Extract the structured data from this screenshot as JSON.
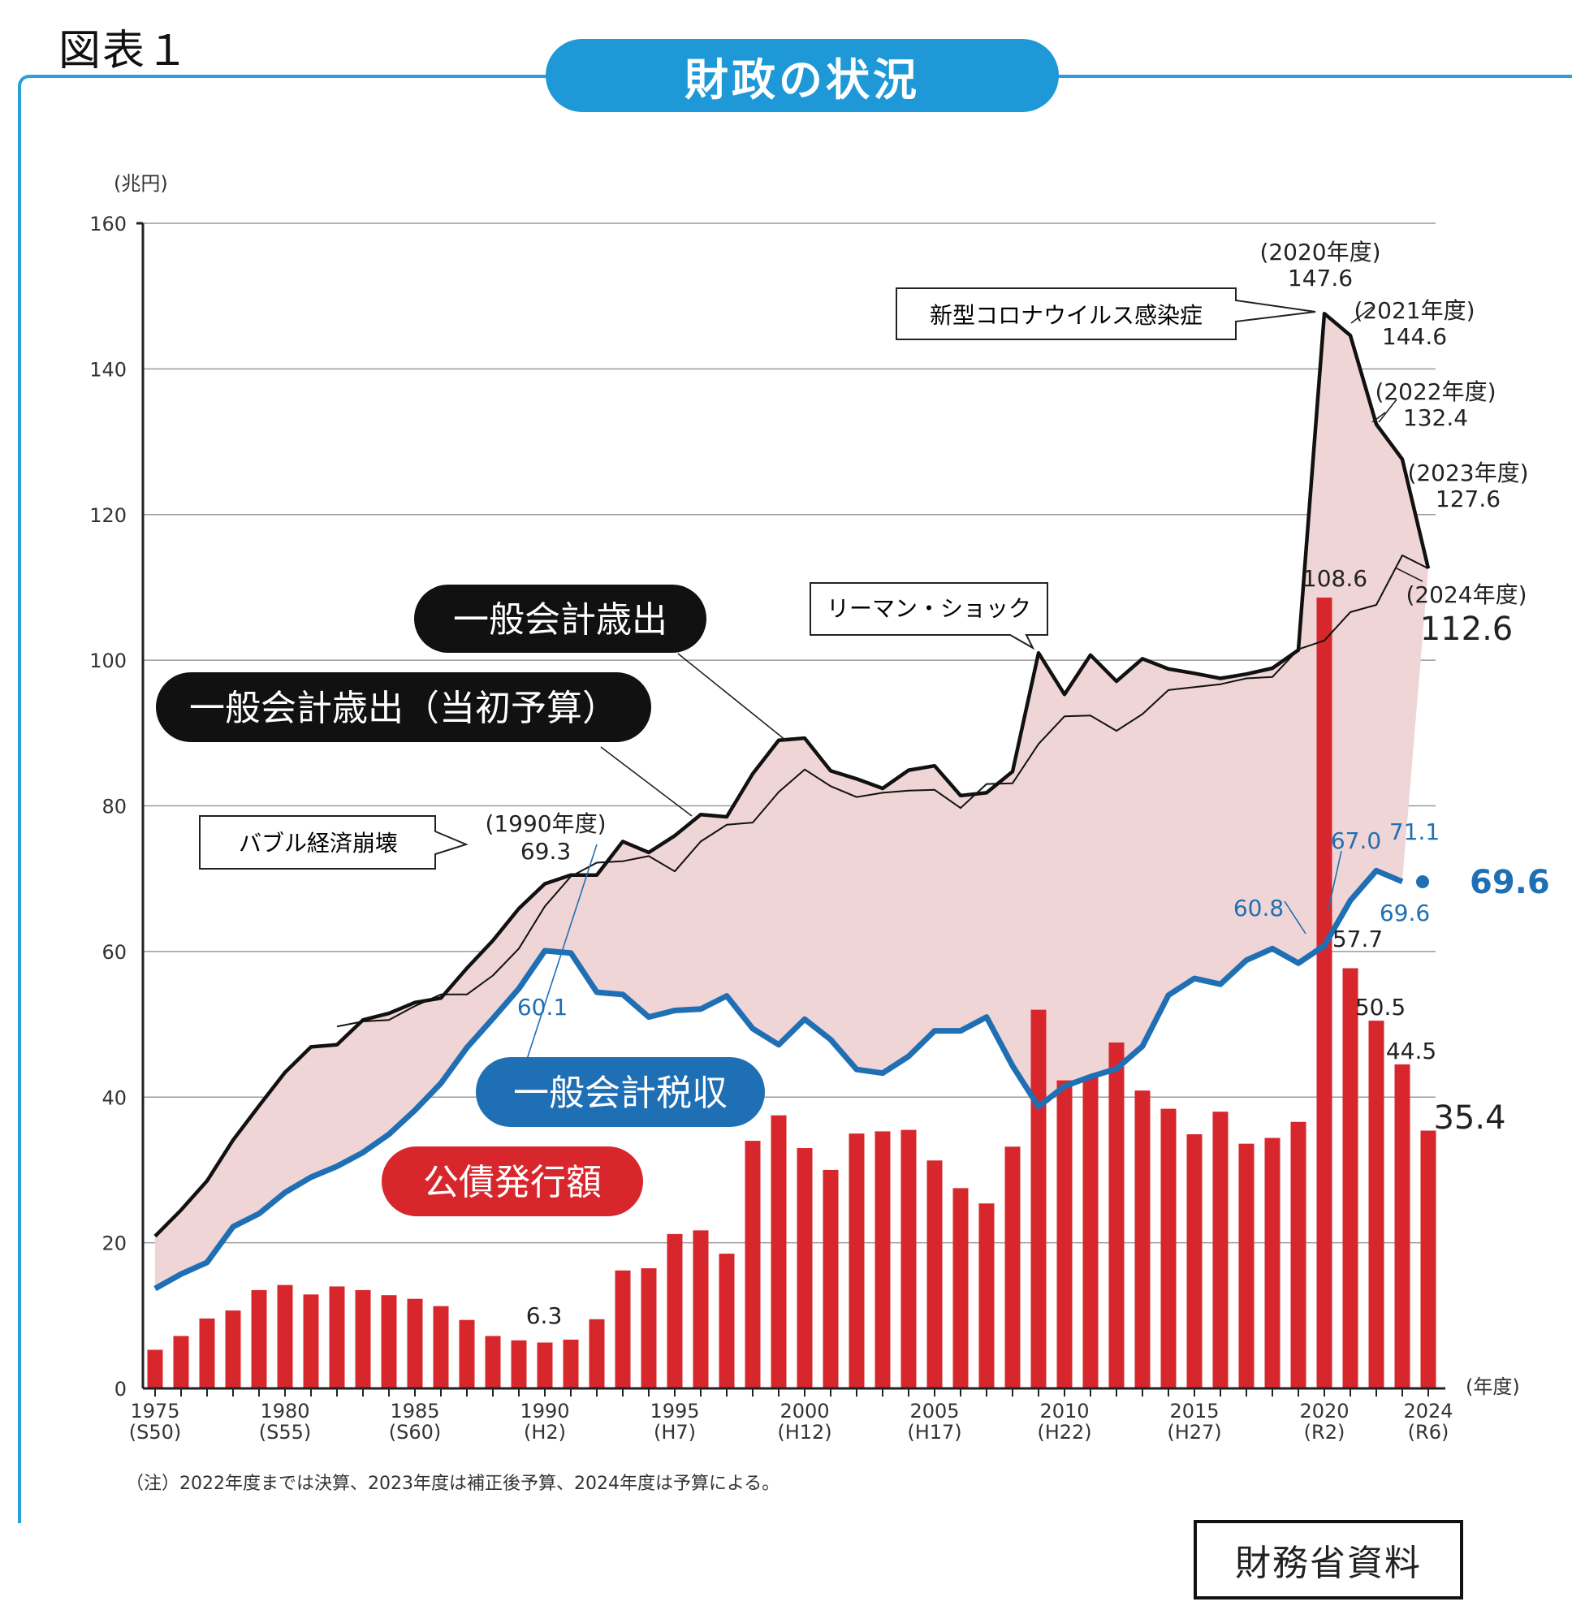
{
  "figure_label": "図表１",
  "title": "財政の状況",
  "source": "財務省資料",
  "chart_data": {
    "type": "bar+line",
    "y_unit_label": "(兆円)",
    "x_unit_label": "(年度)",
    "ylim": [
      0,
      160
    ],
    "yticks": [
      0,
      20,
      40,
      60,
      80,
      100,
      120,
      140,
      160
    ],
    "grid": true,
    "x": [
      1975,
      1976,
      1977,
      1978,
      1979,
      1980,
      1981,
      1982,
      1983,
      1984,
      1985,
      1986,
      1987,
      1988,
      1989,
      1990,
      1991,
      1992,
      1993,
      1994,
      1995,
      1996,
      1997,
      1998,
      1999,
      2000,
      2001,
      2002,
      2003,
      2004,
      2005,
      2006,
      2007,
      2008,
      2009,
      2010,
      2011,
      2012,
      2013,
      2014,
      2015,
      2016,
      2017,
      2018,
      2019,
      2020,
      2021,
      2022,
      2023,
      2024
    ],
    "x_tick_labels": [
      {
        "year": 1975,
        "line1": "1975",
        "line2": "(S50)"
      },
      {
        "year": 1980,
        "line1": "1980",
        "line2": "(S55)"
      },
      {
        "year": 1985,
        "line1": "1985",
        "line2": "(S60)"
      },
      {
        "year": 1990,
        "line1": "1990",
        "line2": "(H2)"
      },
      {
        "year": 1995,
        "line1": "1995",
        "line2": "(H7)"
      },
      {
        "year": 2000,
        "line1": "2000",
        "line2": "(H12)"
      },
      {
        "year": 2005,
        "line1": "2005",
        "line2": "(H17)"
      },
      {
        "year": 2010,
        "line1": "2010",
        "line2": "(H22)"
      },
      {
        "year": 2015,
        "line1": "2015",
        "line2": "(H27)"
      },
      {
        "year": 2020,
        "line1": "2020",
        "line2": "(R2)"
      },
      {
        "year": 2024,
        "line1": "2024",
        "line2": "(R6)"
      }
    ],
    "series": [
      {
        "name": "一般会計歳出",
        "kind": "line",
        "color": "#111111",
        "values": [
          20.9,
          24.5,
          28.5,
          34.1,
          38.8,
          43.4,
          46.9,
          47.2,
          50.6,
          51.5,
          53.0,
          53.6,
          57.7,
          61.5,
          65.9,
          69.3,
          70.5,
          70.5,
          75.1,
          73.6,
          75.9,
          78.8,
          78.5,
          84.4,
          89.0,
          89.3,
          84.8,
          83.7,
          82.4,
          84.9,
          85.5,
          81.4,
          81.8,
          84.7,
          101.0,
          95.3,
          100.7,
          97.1,
          100.2,
          98.8,
          98.2,
          97.5,
          98.1,
          98.9,
          101.4,
          147.6,
          144.6,
          132.4,
          127.6,
          112.6
        ]
      },
      {
        "name": "一般会計歳出(当初予算)",
        "kind": "line",
        "color": "#111111",
        "values": [
          null,
          null,
          null,
          null,
          null,
          null,
          null,
          49.7,
          50.4,
          50.6,
          52.5,
          54.1,
          54.1,
          56.7,
          60.4,
          66.2,
          70.3,
          72.2,
          72.4,
          73.1,
          71.0,
          75.1,
          77.4,
          77.7,
          81.9,
          85.0,
          82.7,
          81.2,
          81.8,
          82.1,
          82.2,
          79.7,
          83.0,
          83.1,
          88.5,
          92.3,
          92.4,
          90.3,
          92.6,
          95.9,
          96.3,
          96.7,
          97.5,
          97.7,
          101.5,
          102.7,
          106.6,
          107.6,
          114.4,
          112.6
        ]
      },
      {
        "name": "一般会計税収",
        "kind": "line",
        "color": "#1f6fb5",
        "values": [
          13.7,
          15.7,
          17.3,
          22.2,
          24.0,
          26.9,
          29.0,
          30.5,
          32.4,
          34.9,
          38.2,
          41.9,
          46.8,
          50.8,
          54.9,
          60.1,
          59.8,
          54.4,
          54.1,
          51.0,
          51.9,
          52.1,
          53.9,
          49.4,
          47.2,
          50.7,
          47.9,
          43.8,
          43.3,
          45.6,
          49.1,
          49.1,
          51.0,
          44.3,
          38.7,
          41.5,
          42.8,
          43.9,
          47.0,
          54.0,
          56.3,
          55.5,
          58.8,
          60.4,
          58.4,
          60.8,
          67.0,
          71.1,
          69.6,
          69.6
        ]
      },
      {
        "name": "公債発行額",
        "kind": "bar",
        "color": "#d7272c",
        "values": [
          5.3,
          7.2,
          9.6,
          10.7,
          13.5,
          14.2,
          12.9,
          14.0,
          13.5,
          12.8,
          12.3,
          11.3,
          9.4,
          7.2,
          6.6,
          6.3,
          6.7,
          9.5,
          16.2,
          16.5,
          21.2,
          21.7,
          18.5,
          34.0,
          37.5,
          33.0,
          30.0,
          35.0,
          35.3,
          35.5,
          31.3,
          27.5,
          25.4,
          33.2,
          52.0,
          42.3,
          42.8,
          47.5,
          40.9,
          38.4,
          34.9,
          38.0,
          33.6,
          34.4,
          36.6,
          108.6,
          57.7,
          50.5,
          44.5,
          35.4
        ]
      }
    ],
    "series_labels": [
      {
        "series": "一般会計歳出",
        "text": "一般会計歳出"
      },
      {
        "series": "一般会計歳出(当初予算)",
        "text": "一般会計歳出（当初予算）"
      },
      {
        "series": "一般会計税収",
        "text": "一般会計税収"
      },
      {
        "series": "公債発行額",
        "text": "公債発行額"
      }
    ],
    "annotations": {
      "bubble": "バブル経済崩壊",
      "lehman": "リーマン・ショック",
      "covid": "新型コロナウイルス感染症",
      "y1990_year": "(1990年度)",
      "y1990_value": "69.3",
      "y2020_year": "(2020年度)",
      "y2020_value": "147.6",
      "y2021_year": "(2021年度)",
      "y2021_value": "144.6",
      "y2022_year": "(2022年度)",
      "y2022_value": "132.4",
      "y2023_year": "(2023年度)",
      "y2023_value": "127.6",
      "y2024_year": "(2024年度)",
      "y2024_value": "112.6",
      "tax_1990": "60.1",
      "tax_2020": "60.8",
      "tax_2021": "67.0",
      "tax_2022": "71.1",
      "tax_2023": "69.6",
      "tax_2024": "69.6",
      "bond_1990": "6.3",
      "bond_2020": "108.6",
      "bond_2021": "57.7",
      "bond_2022": "50.5",
      "bond_2023": "44.5",
      "bond_2024": "35.4"
    },
    "note": "（注）2022年度までは決算、2023年度は補正後予算、2024年度は予算による。"
  }
}
